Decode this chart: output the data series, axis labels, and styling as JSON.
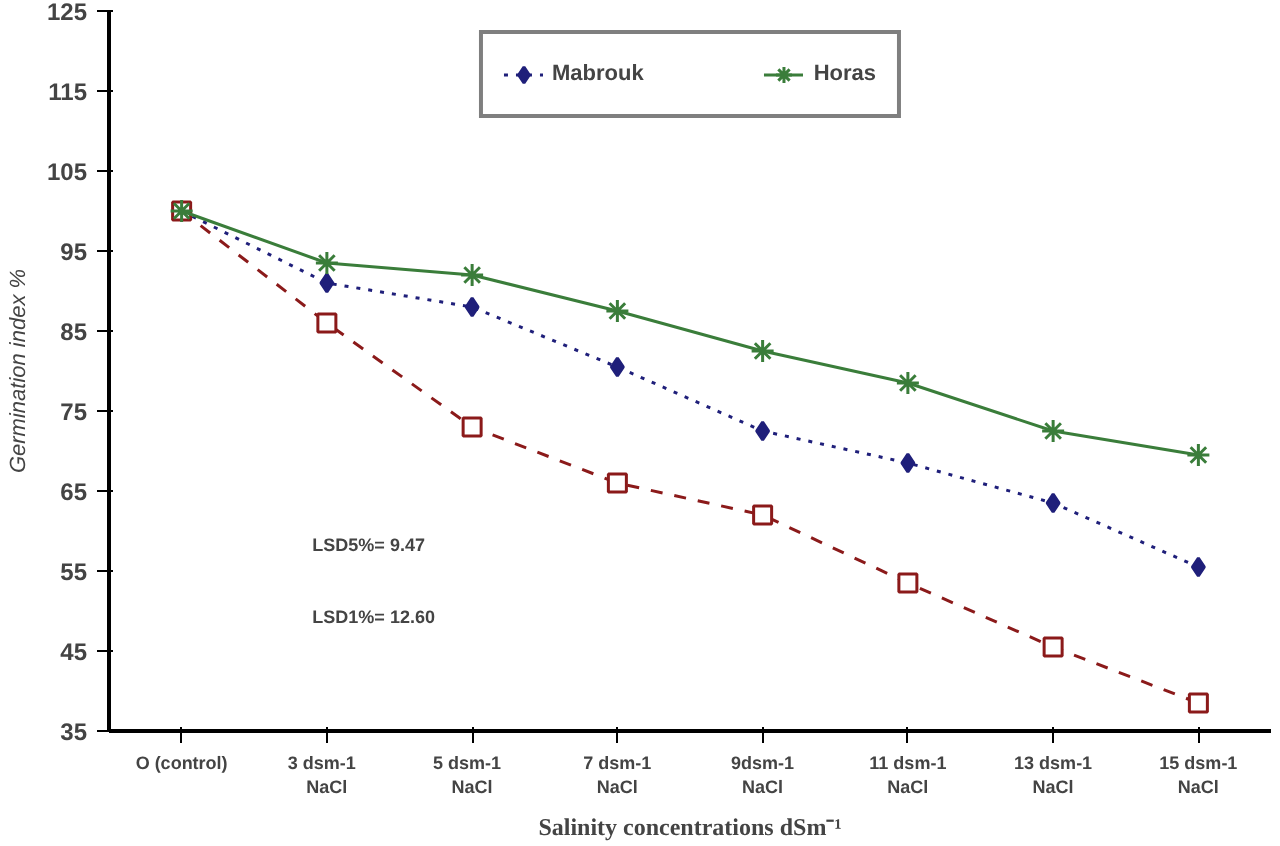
{
  "chart_data": {
    "type": "line",
    "ylabel": "Germination index %",
    "xlabel": "Salinity concentrations dSm⁻¹",
    "categories": [
      "O (control)",
      "3   dsm-1\nNaCl",
      "5   dsm-1\nNaCl",
      "7 dsm-1\nNaCl",
      "9dsm-1\nNaCl",
      "11 dsm-1\nNaCl",
      "13 dsm-1\nNaCl",
      "15 dsm-1\nNaCl"
    ],
    "series": [
      {
        "name": "Mabrouk",
        "color": "#1f1f7a",
        "marker": "diamond",
        "line_style": "dotted",
        "values": [
          100,
          91,
          88,
          80.5,
          72.5,
          68.5,
          63.5,
          55.5
        ]
      },
      {
        "color": "#8b1a1a",
        "marker": "square",
        "line_style": "dashed",
        "values": [
          100,
          86,
          73,
          66,
          62,
          53.5,
          45.5,
          38.5
        ]
      },
      {
        "name": "Horas",
        "color": "#3a7d3a",
        "marker": "cross",
        "line_style": "solid",
        "values": [
          100,
          93.5,
          92,
          87.5,
          82.5,
          78.5,
          72.5,
          69.5
        ]
      }
    ],
    "ylim": [
      35,
      125
    ],
    "yticks": [
      35,
      45,
      55,
      65,
      75,
      85,
      95,
      105,
      115,
      125
    ],
    "grid": false,
    "legend": "top",
    "annotations": [
      "LSD5%= 9.47",
      "LSD1%= 12.60"
    ]
  }
}
